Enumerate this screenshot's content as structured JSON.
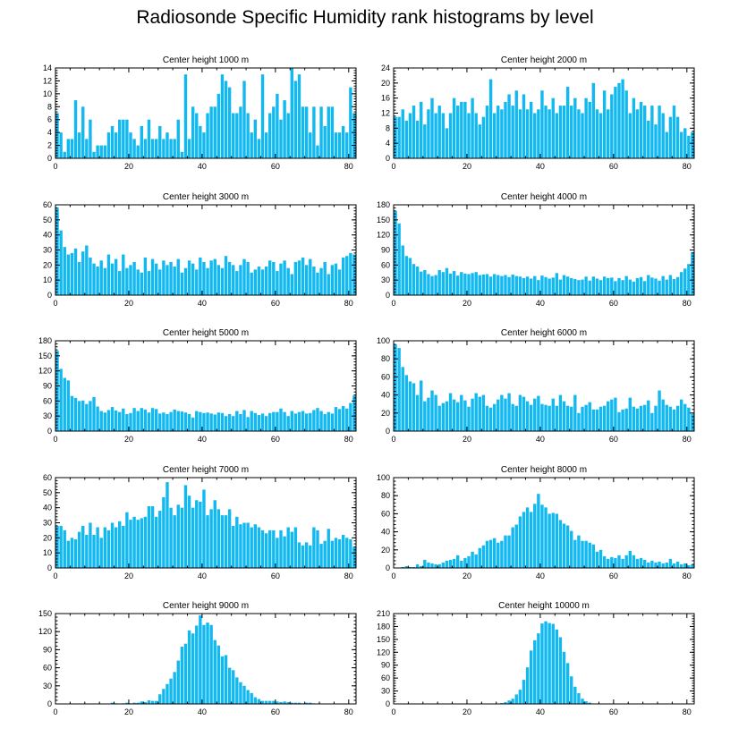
{
  "title": "Radiosonde Specific Humidity rank histograms by level",
  "colors": {
    "bar": "#12b9f0",
    "axis": "#000000"
  },
  "chart_data": [
    {
      "type": "bar",
      "title": "Center height 1000 m",
      "xlim": [
        0,
        82
      ],
      "ylim": [
        0,
        14
      ],
      "xticks": [
        0,
        20,
        40,
        60,
        80
      ],
      "yticks": [
        0,
        2,
        4,
        6,
        8,
        10,
        12,
        14
      ],
      "values": [
        7,
        4,
        1,
        3,
        3,
        9,
        4,
        8,
        3,
        6,
        1,
        2,
        2,
        2,
        4,
        5,
        4,
        6,
        6,
        6,
        4,
        3,
        2,
        5,
        3,
        6,
        3,
        3,
        5,
        3,
        4,
        3,
        3,
        6,
        1,
        13,
        3,
        8,
        7,
        5,
        4,
        7,
        8,
        8,
        10,
        13,
        12,
        11,
        7,
        7,
        8,
        12,
        7,
        4,
        6,
        3,
        13,
        4,
        7,
        8,
        10,
        6,
        9,
        7,
        14,
        12,
        13,
        8,
        8,
        4,
        8,
        2,
        8,
        5,
        8,
        8,
        4,
        4,
        5,
        4,
        11,
        7
      ]
    },
    {
      "type": "bar",
      "title": "Center height 2000 m",
      "xlim": [
        0,
        82
      ],
      "ylim": [
        0,
        24
      ],
      "xticks": [
        0,
        20,
        40,
        60,
        80
      ],
      "yticks": [
        0,
        4,
        8,
        12,
        16,
        20,
        24
      ],
      "values": [
        11,
        11,
        13,
        10,
        12,
        14,
        10,
        15,
        9,
        13,
        16,
        12,
        14,
        12,
        8,
        12,
        16,
        14,
        15,
        15,
        12,
        16,
        12,
        9,
        11,
        14,
        21,
        12,
        14,
        13,
        15,
        17,
        14,
        18,
        13,
        17,
        13,
        15,
        12,
        13,
        18,
        14,
        13,
        16,
        12,
        14,
        14,
        19,
        14,
        16,
        13,
        12,
        16,
        15,
        20,
        13,
        12,
        18,
        13,
        17,
        19,
        20,
        21,
        18,
        12,
        16,
        13,
        15,
        14,
        10,
        14,
        9,
        14,
        12,
        7,
        11,
        14,
        11,
        7,
        8,
        6,
        7
      ]
    },
    {
      "type": "bar",
      "title": "Center height 3000 m",
      "xlim": [
        0,
        82
      ],
      "ylim": [
        0,
        60
      ],
      "xticks": [
        0,
        20,
        40,
        60,
        80
      ],
      "yticks": [
        0,
        10,
        20,
        30,
        40,
        50,
        60
      ],
      "values": [
        58,
        43,
        32,
        27,
        28,
        31,
        22,
        29,
        33,
        25,
        21,
        19,
        23,
        18,
        27,
        21,
        24,
        16,
        27,
        18,
        20,
        22,
        17,
        15,
        25,
        16,
        24,
        21,
        17,
        23,
        20,
        22,
        19,
        24,
        15,
        18,
        23,
        21,
        17,
        25,
        22,
        18,
        23,
        24,
        20,
        18,
        26,
        22,
        20,
        16,
        20,
        24,
        22,
        15,
        17,
        19,
        17,
        19,
        23,
        22,
        16,
        21,
        23,
        18,
        14,
        22,
        23,
        25,
        20,
        24,
        19,
        15,
        18,
        22,
        14,
        20,
        21,
        17,
        25,
        26,
        28,
        27
      ]
    },
    {
      "type": "bar",
      "title": "Center height 4000 m",
      "xlim": [
        0,
        82
      ],
      "ylim": [
        0,
        180
      ],
      "xticks": [
        0,
        20,
        40,
        60,
        80
      ],
      "yticks": [
        0,
        30,
        60,
        90,
        120,
        150,
        180
      ],
      "values": [
        168,
        143,
        99,
        78,
        74,
        62,
        57,
        47,
        50,
        42,
        38,
        40,
        50,
        46,
        54,
        43,
        48,
        39,
        46,
        43,
        42,
        44,
        46,
        40,
        41,
        42,
        37,
        42,
        40,
        38,
        40,
        36,
        41,
        38,
        37,
        34,
        37,
        33,
        38,
        30,
        39,
        36,
        33,
        35,
        44,
        31,
        40,
        37,
        34,
        32,
        30,
        31,
        37,
        29,
        37,
        33,
        30,
        37,
        34,
        35,
        28,
        34,
        30,
        38,
        31,
        27,
        34,
        36,
        28,
        40,
        35,
        33,
        29,
        38,
        31,
        40,
        32,
        36,
        46,
        53,
        62,
        86
      ]
    },
    {
      "type": "bar",
      "title": "Center height 5000 m",
      "xlim": [
        0,
        82
      ],
      "ylim": [
        0,
        180
      ],
      "xticks": [
        0,
        20,
        40,
        60,
        80
      ],
      "yticks": [
        0,
        30,
        60,
        90,
        120,
        150,
        180
      ],
      "values": [
        160,
        124,
        106,
        101,
        70,
        66,
        60,
        61,
        54,
        60,
        68,
        49,
        40,
        37,
        42,
        48,
        41,
        38,
        45,
        34,
        36,
        46,
        40,
        46,
        43,
        37,
        46,
        44,
        35,
        37,
        34,
        38,
        43,
        40,
        39,
        37,
        34,
        27,
        40,
        38,
        36,
        37,
        35,
        33,
        37,
        36,
        30,
        34,
        30,
        40,
        34,
        42,
        28,
        40,
        36,
        32,
        35,
        30,
        36,
        38,
        38,
        45,
        38,
        30,
        40,
        35,
        38,
        40,
        35,
        36,
        42,
        46,
        40,
        34,
        38,
        35,
        48,
        44,
        50,
        45,
        56,
        71
      ]
    },
    {
      "type": "bar",
      "title": "Center height 6000 m",
      "xlim": [
        0,
        82
      ],
      "ylim": [
        0,
        100
      ],
      "xticks": [
        0,
        20,
        40,
        60,
        80
      ],
      "yticks": [
        0,
        20,
        40,
        60,
        80,
        100
      ],
      "values": [
        96,
        92,
        71,
        62,
        55,
        53,
        40,
        56,
        33,
        37,
        45,
        40,
        28,
        31,
        33,
        42,
        35,
        32,
        40,
        34,
        27,
        36,
        42,
        38,
        40,
        28,
        26,
        30,
        35,
        40,
        36,
        42,
        30,
        28,
        40,
        38,
        33,
        29,
        36,
        39,
        30,
        29,
        28,
        36,
        28,
        40,
        33,
        28,
        27,
        40,
        20,
        27,
        29,
        32,
        24,
        24,
        27,
        28,
        33,
        35,
        37,
        21,
        24,
        25,
        37,
        27,
        25,
        28,
        29,
        34,
        20,
        28,
        45,
        35,
        29,
        27,
        24,
        28,
        35,
        30,
        26,
        19
      ]
    },
    {
      "type": "bar",
      "title": "Center height 7000 m",
      "xlim": [
        0,
        82
      ],
      "ylim": [
        0,
        60
      ],
      "xticks": [
        0,
        20,
        40,
        60,
        80
      ],
      "yticks": [
        0,
        10,
        20,
        30,
        40,
        50,
        60
      ],
      "values": [
        28,
        28,
        25,
        18,
        20,
        19,
        24,
        28,
        22,
        30,
        22,
        27,
        20,
        27,
        25,
        30,
        27,
        31,
        28,
        37,
        32,
        34,
        32,
        33,
        34,
        41,
        41,
        34,
        38,
        47,
        57,
        40,
        35,
        42,
        40,
        55,
        48,
        40,
        45,
        44,
        52,
        35,
        39,
        45,
        39,
        35,
        35,
        39,
        28,
        34,
        29,
        30,
        30,
        27,
        29,
        27,
        25,
        23,
        25,
        25,
        20,
        25,
        21,
        27,
        24,
        27,
        17,
        15,
        17,
        15,
        27,
        25,
        16,
        18,
        26,
        18,
        20,
        19,
        22,
        20,
        19,
        14
      ]
    },
    {
      "type": "bar",
      "title": "Center height 8000 m",
      "xlim": [
        0,
        82
      ],
      "ylim": [
        0,
        100
      ],
      "xticks": [
        0,
        20,
        40,
        60,
        80
      ],
      "yticks": [
        0,
        20,
        40,
        60,
        80,
        100
      ],
      "values": [
        0,
        0,
        1,
        2,
        1,
        1,
        4,
        2,
        9,
        6,
        5,
        4,
        4,
        6,
        8,
        9,
        10,
        14,
        8,
        11,
        13,
        18,
        15,
        22,
        25,
        30,
        31,
        33,
        28,
        30,
        36,
        36,
        45,
        48,
        57,
        62,
        67,
        62,
        71,
        82,
        70,
        67,
        60,
        61,
        60,
        53,
        49,
        47,
        41,
        31,
        36,
        30,
        30,
        28,
        26,
        18,
        20,
        13,
        10,
        12,
        11,
        14,
        10,
        14,
        19,
        14,
        10,
        11,
        9,
        6,
        8,
        6,
        7,
        5,
        6,
        10,
        5,
        7,
        4,
        5,
        3,
        4
      ]
    },
    {
      "type": "bar",
      "title": "Center height 9000 m",
      "xlim": [
        0,
        82
      ],
      "ylim": [
        0,
        150
      ],
      "xticks": [
        0,
        20,
        40,
        60,
        80
      ],
      "yticks": [
        0,
        30,
        60,
        90,
        120,
        150
      ],
      "values": [
        0,
        0,
        0,
        0,
        0,
        0,
        0,
        0,
        0,
        0,
        0,
        0,
        0,
        0,
        0,
        2,
        1,
        0,
        1,
        2,
        1,
        2,
        2,
        4,
        3,
        6,
        5,
        5,
        16,
        25,
        33,
        42,
        53,
        72,
        95,
        100,
        122,
        117,
        130,
        147,
        131,
        135,
        131,
        106,
        97,
        79,
        81,
        60,
        56,
        44,
        36,
        30,
        23,
        18,
        11,
        8,
        5,
        5,
        5,
        5,
        4,
        3,
        4,
        3,
        2,
        2,
        2,
        1,
        2,
        2,
        1,
        0,
        0,
        0,
        0,
        0,
        0,
        0,
        0,
        0,
        0,
        0
      ]
    },
    {
      "type": "bar",
      "title": "Center height 10000 m",
      "xlim": [
        0,
        82
      ],
      "ylim": [
        0,
        210
      ],
      "xticks": [
        0,
        20,
        40,
        60,
        80
      ],
      "yticks": [
        0,
        30,
        60,
        90,
        120,
        150,
        180,
        210
      ],
      "values": [
        0,
        0,
        0,
        0,
        0,
        0,
        0,
        0,
        0,
        0,
        0,
        0,
        0,
        0,
        0,
        0,
        0,
        0,
        0,
        0,
        0,
        0,
        0,
        0,
        0,
        0,
        0,
        0,
        1,
        2,
        4,
        8,
        12,
        22,
        33,
        56,
        85,
        124,
        148,
        164,
        187,
        192,
        188,
        186,
        173,
        155,
        121,
        95,
        64,
        40,
        25,
        12,
        6,
        3,
        1,
        0,
        0,
        0,
        0,
        0,
        0,
        0,
        0,
        0,
        0,
        0,
        0,
        0,
        0,
        0,
        0,
        0,
        0,
        0,
        0,
        0,
        0,
        0,
        0,
        0,
        0,
        0
      ]
    }
  ]
}
